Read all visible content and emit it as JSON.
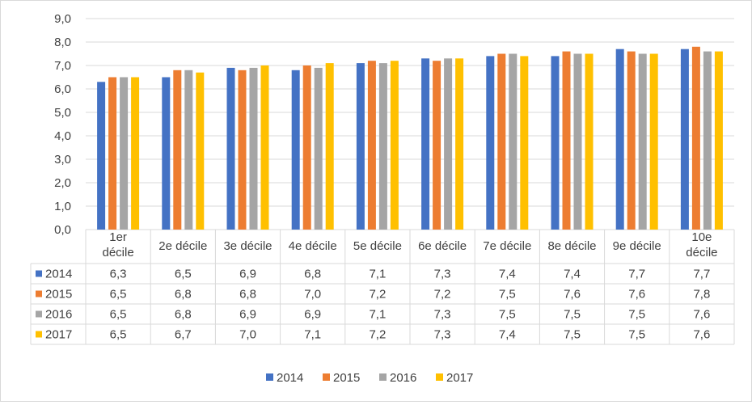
{
  "chart_data": {
    "type": "bar",
    "categories": [
      "1er décile",
      "2e décile",
      "3e décile",
      "4e décile",
      "5e décile",
      "6e décile",
      "7e décile",
      "8e décile",
      "9e décile",
      "10e décile"
    ],
    "category_lines": [
      [
        "1er",
        "décile"
      ],
      [
        "2e décile"
      ],
      [
        "3e décile"
      ],
      [
        "4e décile"
      ],
      [
        "5e décile"
      ],
      [
        "6e décile"
      ],
      [
        "7e décile"
      ],
      [
        "8e décile"
      ],
      [
        "9e décile"
      ],
      [
        "10e",
        "décile"
      ]
    ],
    "series": [
      {
        "name": "2014",
        "color": "#4472c4",
        "values": [
          6.3,
          6.5,
          6.9,
          6.8,
          7.1,
          7.3,
          7.4,
          7.4,
          7.7,
          7.7
        ]
      },
      {
        "name": "2015",
        "color": "#ed7d31",
        "values": [
          6.5,
          6.8,
          6.8,
          7.0,
          7.2,
          7.2,
          7.5,
          7.6,
          7.6,
          7.8
        ]
      },
      {
        "name": "2016",
        "color": "#a5a5a5",
        "values": [
          6.5,
          6.8,
          6.9,
          6.9,
          7.1,
          7.3,
          7.5,
          7.5,
          7.5,
          7.6
        ]
      },
      {
        "name": "2017",
        "color": "#ffc000",
        "values": [
          6.5,
          6.7,
          7.0,
          7.1,
          7.2,
          7.3,
          7.4,
          7.5,
          7.5,
          7.6
        ]
      }
    ],
    "ylim": [
      0,
      9
    ],
    "ytick_step": 1,
    "ytick_labels": [
      "0,0",
      "1,0",
      "2,0",
      "3,0",
      "4,0",
      "5,0",
      "6,0",
      "7,0",
      "8,0",
      "9,0"
    ],
    "grid": true,
    "data_table": true,
    "legend_position": "bottom",
    "title": "",
    "xlabel": "",
    "ylabel": ""
  }
}
